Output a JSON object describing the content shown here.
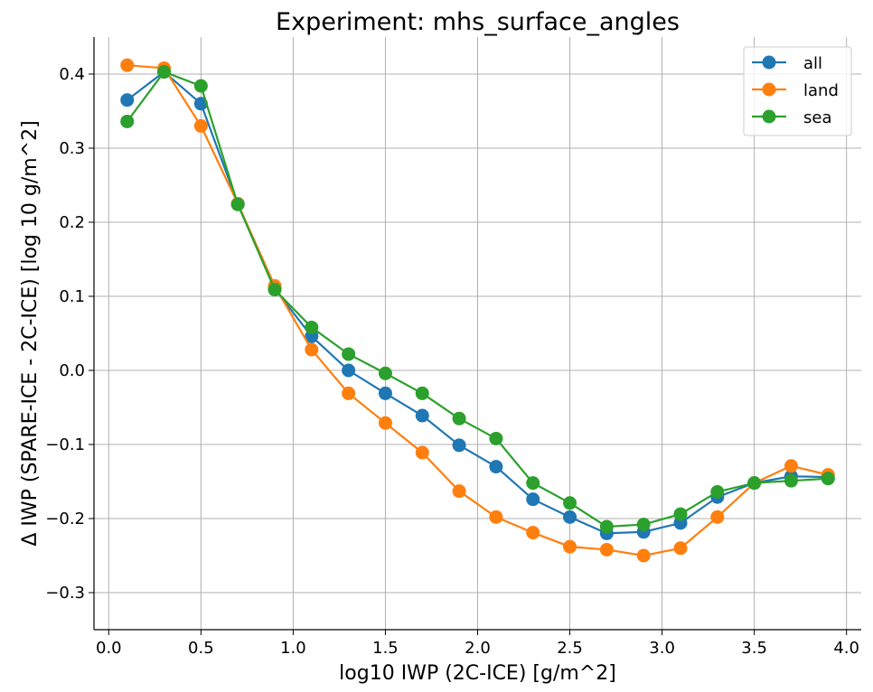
{
  "chart_data": {
    "type": "line",
    "title": "Experiment: mhs_surface_angles",
    "xlabel": "log10 IWP (2C-ICE) [g/m^2]",
    "ylabel": "Δ IWP (SPARE-ICE - 2C-ICE) [log 10 g/m^2]",
    "xlim": [
      -0.08,
      4.08
    ],
    "ylim": [
      -0.35,
      0.45
    ],
    "xticks": [
      0.0,
      0.5,
      1.0,
      1.5,
      2.0,
      2.5,
      3.0,
      3.5,
      4.0
    ],
    "xtick_labels": [
      "0.0",
      "0.5",
      "1.0",
      "1.5",
      "2.0",
      "2.5",
      "3.0",
      "3.5",
      "4.0"
    ],
    "yticks": [
      -0.3,
      -0.2,
      -0.1,
      0.0,
      0.1,
      0.2,
      0.3,
      0.4
    ],
    "ytick_labels": [
      "−0.3",
      "−0.2",
      "−0.1",
      "0.0",
      "0.1",
      "0.2",
      "0.3",
      "0.4"
    ],
    "grid": true,
    "legend_position": "top-right",
    "x": [
      0.1,
      0.3,
      0.5,
      0.7,
      0.9,
      1.1,
      1.3,
      1.5,
      1.7,
      1.9,
      2.1,
      2.3,
      2.5,
      2.7,
      2.9,
      3.1,
      3.3,
      3.5,
      3.7,
      3.9
    ],
    "series": [
      {
        "name": "all",
        "color": "#1f77b4",
        "values": [
          0.365,
          0.403,
          0.36,
          0.225,
          0.11,
          0.046,
          0.0,
          -0.031,
          -0.061,
          -0.101,
          -0.13,
          -0.174,
          -0.198,
          -0.22,
          -0.218,
          -0.206,
          -0.171,
          -0.152,
          -0.143,
          -0.144
        ]
      },
      {
        "name": "land",
        "color": "#ff7f0e",
        "values": [
          0.412,
          0.408,
          0.33,
          0.225,
          0.114,
          0.028,
          -0.031,
          -0.071,
          -0.111,
          -0.163,
          -0.198,
          -0.219,
          -0.238,
          -0.242,
          -0.25,
          -0.24,
          -0.198,
          -0.152,
          -0.129,
          -0.141
        ]
      },
      {
        "name": "sea",
        "color": "#2ca02c",
        "values": [
          0.336,
          0.403,
          0.384,
          0.224,
          0.109,
          0.058,
          0.022,
          -0.004,
          -0.031,
          -0.065,
          -0.092,
          -0.152,
          -0.179,
          -0.211,
          -0.208,
          -0.194,
          -0.164,
          -0.152,
          -0.149,
          -0.146
        ]
      }
    ]
  }
}
